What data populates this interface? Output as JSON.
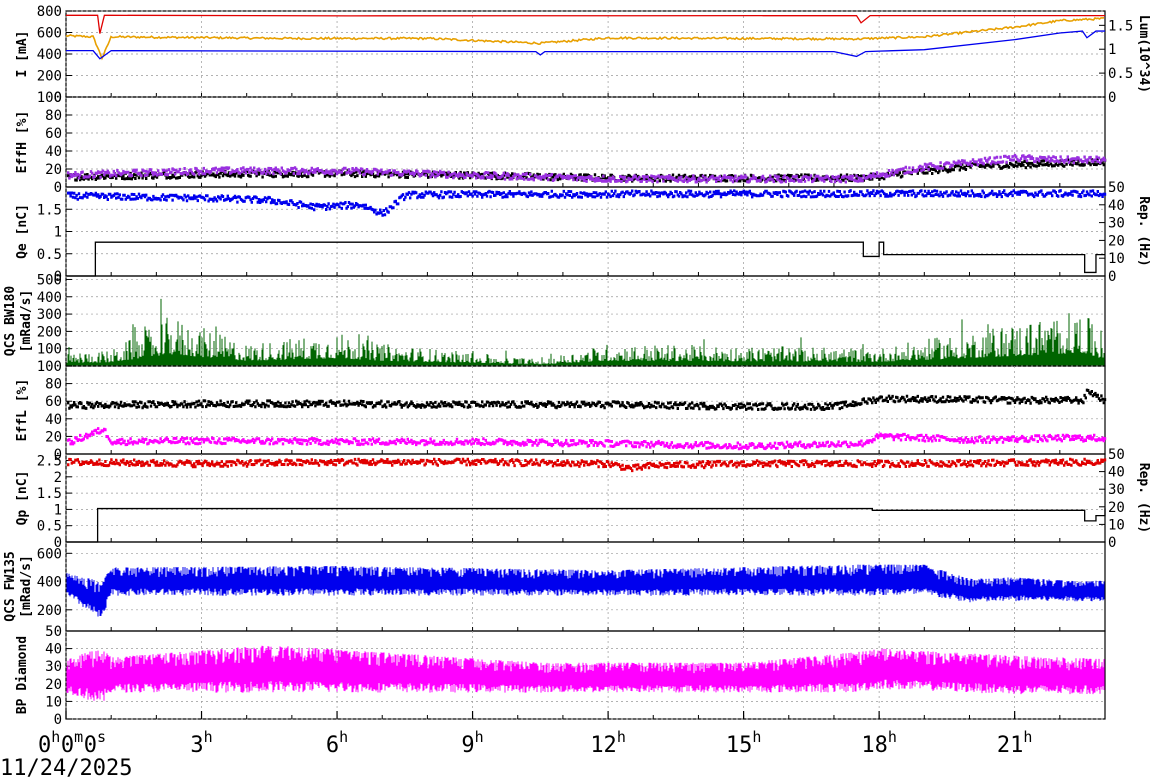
{
  "date_label": "11/24/2025",
  "colors": {
    "red": "#e00000",
    "orange": "#e8a000",
    "blue": "#0000ee",
    "purple": "#9a30e0",
    "black": "#000000",
    "green": "#006400",
    "magenta": "#ff00ff",
    "grid": "#999999"
  },
  "chart_data": [
    {
      "type": "line",
      "id": "current",
      "ylabel": "I [mA]",
      "ylim": [
        0,
        800
      ],
      "yticks": [
        0,
        200,
        400,
        600,
        800
      ],
      "ylabel_right": "Lum(10^34)",
      "ylim_right": [
        0,
        1.8
      ],
      "yticks_right": [
        0,
        0.5,
        1,
        1.5
      ],
      "grid": true,
      "series": [
        {
          "color": "red",
          "axis": "left",
          "kind": "line",
          "x": [
            0,
            0.7,
            0.75,
            0.85,
            1,
            6.3,
            17.5,
            17.6,
            17.8,
            18,
            23
          ],
          "y": [
            760,
            760,
            590,
            760,
            760,
            755,
            757,
            690,
            757,
            757,
            757
          ]
        },
        {
          "color": "orange",
          "axis": "left",
          "kind": "noisy",
          "x": [
            0,
            0.6,
            0.8,
            1,
            5,
            8,
            10.5,
            12,
            17.5,
            19,
            21,
            22,
            23
          ],
          "y": [
            570,
            560,
            360,
            560,
            545,
            545,
            500,
            550,
            540,
            560,
            650,
            710,
            730
          ]
        },
        {
          "color": "blue",
          "axis": "right",
          "kind": "line",
          "x": [
            0,
            0.6,
            0.75,
            1,
            10.4,
            10.5,
            10.6,
            17,
            17.5,
            17.7,
            18,
            19,
            21,
            22,
            22.5,
            22.6,
            22.8,
            23
          ],
          "y": [
            0.97,
            0.97,
            0.8,
            0.97,
            0.95,
            0.88,
            0.95,
            0.95,
            0.85,
            0.95,
            0.96,
            0.99,
            1.2,
            1.34,
            1.38,
            1.24,
            1.38,
            1.38
          ]
        }
      ]
    },
    {
      "type": "scatter",
      "id": "eff-h",
      "ylabel": "EffH [%]",
      "ylim": [
        0,
        100
      ],
      "yticks": [
        0,
        20,
        40,
        60,
        80,
        100
      ],
      "grid": true,
      "series": [
        {
          "color": "black",
          "kind": "band",
          "x": [
            0,
            3,
            6,
            9,
            12,
            15,
            17.6,
            18,
            20,
            23
          ],
          "y": [
            11,
            14,
            15,
            13,
            10,
            10,
            10,
            12,
            23,
            28
          ]
        },
        {
          "color": "purple",
          "kind": "band",
          "x": [
            0,
            3,
            6,
            9,
            12,
            15,
            17.6,
            18,
            19,
            20,
            21,
            22,
            23
          ],
          "y": [
            13,
            18,
            18,
            13,
            9,
            9,
            9,
            14,
            22,
            27,
            32,
            30,
            30
          ]
        }
      ]
    },
    {
      "type": "scatter",
      "id": "qe",
      "ylabel": "Qe [nC]",
      "ylim": [
        0,
        2
      ],
      "yticks": [
        0,
        0.5,
        1,
        1.5
      ],
      "ylabel_right": "Rep. (Hz)",
      "ylim_right": [
        0,
        50
      ],
      "yticks_right": [
        0,
        10,
        20,
        30,
        40,
        50
      ],
      "grid": true,
      "series": [
        {
          "color": "blue",
          "axis": "left",
          "kind": "band",
          "x": [
            0,
            3,
            4.5,
            5.5,
            6.5,
            7,
            7.5,
            9,
            12,
            18,
            23
          ],
          "y": [
            1.8,
            1.75,
            1.7,
            1.55,
            1.6,
            1.4,
            1.82,
            1.83,
            1.84,
            1.85,
            1.85
          ]
        },
        {
          "color": "black",
          "axis": "right",
          "kind": "step",
          "x": [
            0,
            0.6,
            0.65,
            17.6,
            17.65,
            18,
            18.1,
            22.5,
            22.55,
            22.8,
            23
          ],
          "y": [
            0,
            0,
            19,
            19,
            11,
            19,
            12,
            12,
            2,
            12,
            12
          ]
        }
      ]
    },
    {
      "type": "bar",
      "id": "qcs-bw180",
      "ylabel": "QCS BW180 [mRad/s]",
      "ylim": [
        0,
        520
      ],
      "yticks": [
        100,
        200,
        300,
        400,
        500
      ],
      "grid": true,
      "series": [
        {
          "color": "green",
          "kind": "spikes",
          "x": [
            0,
            1,
            2.3,
            4,
            6,
            7,
            10.5,
            12,
            18,
            22.5,
            23
          ],
          "y": [
            120,
            140,
            450,
            200,
            300,
            200,
            60,
            200,
            160,
            500,
            240
          ]
        }
      ]
    },
    {
      "type": "scatter",
      "id": "eff-l",
      "ylabel": "EffL [%]",
      "ylim": [
        0,
        100
      ],
      "yticks": [
        0,
        20,
        40,
        60,
        80,
        100
      ],
      "grid": true,
      "series": [
        {
          "color": "black",
          "kind": "band",
          "x": [
            0,
            3,
            6,
            9,
            12,
            15,
            17,
            17.5,
            18,
            21,
            22.5,
            22.6,
            23
          ],
          "y": [
            55,
            57,
            57,
            56,
            56,
            54,
            54,
            58,
            63,
            61,
            61,
            72,
            60
          ]
        },
        {
          "color": "magenta",
          "kind": "band",
          "x": [
            0,
            0.8,
            1,
            3,
            6,
            9,
            12,
            15,
            17.6,
            18,
            20,
            22,
            23
          ],
          "y": [
            12,
            28,
            14,
            15,
            14,
            14,
            12,
            9,
            12,
            20,
            16,
            18,
            18
          ]
        }
      ]
    },
    {
      "type": "scatter",
      "id": "qp",
      "ylabel": "Qp [nC]",
      "ylim": [
        0,
        2.7
      ],
      "yticks": [
        0,
        0.5,
        1,
        1.5,
        2,
        2.5
      ],
      "ylabel_right": "Rep. (Hz)",
      "ylim_right": [
        0,
        50
      ],
      "yticks_right": [
        0,
        10,
        20,
        30,
        40,
        50
      ],
      "grid": true,
      "series": [
        {
          "color": "red",
          "axis": "left",
          "kind": "band",
          "x": [
            0,
            3,
            6,
            9,
            12,
            12.5,
            13,
            15,
            18,
            23
          ],
          "y": [
            2.45,
            2.4,
            2.45,
            2.45,
            2.4,
            2.25,
            2.35,
            2.4,
            2.4,
            2.45
          ]
        },
        {
          "color": "black",
          "axis": "right",
          "kind": "step",
          "x": [
            0,
            0.65,
            0.7,
            16.2,
            16.25,
            17.8,
            17.85,
            22.5,
            22.55,
            22.8,
            23
          ],
          "y": [
            0,
            0,
            19,
            19,
            19,
            19,
            18,
            18,
            12,
            15,
            19
          ]
        }
      ]
    },
    {
      "type": "bar",
      "id": "qcs-fw135",
      "ylabel": "QCS FW135 [mRad/s]",
      "ylim": [
        50,
        680
      ],
      "yticks": [
        50,
        200,
        400,
        600
      ],
      "grid": true,
      "series": [
        {
          "color": "blue",
          "kind": "range",
          "x": [
            0,
            0.8,
            1,
            6,
            12,
            17.5,
            19,
            20,
            21,
            22.5,
            23
          ],
          "low": [
            300,
            120,
            300,
            300,
            300,
            300,
            300,
            250,
            260,
            260,
            260
          ],
          "high": [
            460,
            400,
            500,
            510,
            480,
            520,
            520,
            420,
            430,
            400,
            410
          ]
        }
      ]
    },
    {
      "type": "bar",
      "id": "bp-diamond",
      "ylabel": "BP Diamond",
      "ylim": [
        0,
        50
      ],
      "yticks": [
        0,
        10,
        20,
        30,
        40
      ],
      "grid": true,
      "series": [
        {
          "color": "magenta",
          "kind": "range",
          "x": [
            0,
            0.8,
            1,
            4.5,
            10.5,
            15,
            17.5,
            18,
            21,
            23
          ],
          "low": [
            15,
            8,
            15,
            15,
            15,
            15,
            15,
            17,
            14,
            14
          ],
          "high": [
            35,
            40,
            35,
            42,
            32,
            32,
            38,
            40,
            36,
            34
          ]
        }
      ]
    }
  ],
  "xaxis": {
    "xlim": [
      0,
      23
    ],
    "ticks": [
      0,
      3,
      6,
      9,
      12,
      15,
      18,
      21
    ],
    "tick_labels": [
      {
        "base": "0",
        "sup": "h",
        "base2": "0",
        "sup2": "m",
        "base3": "0",
        "sup3": "s"
      },
      {
        "base": "3",
        "sup": "h"
      },
      {
        "base": "6",
        "sup": "h"
      },
      {
        "base": "9",
        "sup": "h"
      },
      {
        "base": "12",
        "sup": "h"
      },
      {
        "base": "15",
        "sup": "h"
      },
      {
        "base": "18",
        "sup": "h"
      },
      {
        "base": "21",
        "sup": "h"
      }
    ]
  }
}
